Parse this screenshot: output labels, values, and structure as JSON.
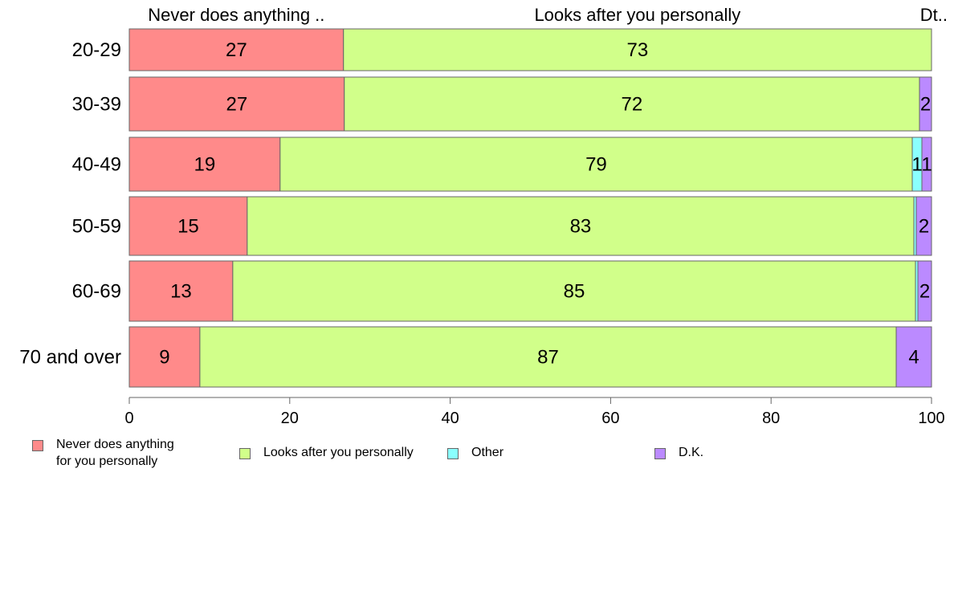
{
  "chart_data": {
    "type": "bar",
    "orientation": "horizontal",
    "stacked": true,
    "categories": [
      "20-29",
      "30-39",
      "40-49",
      "50-59",
      "60-69",
      "70 and over"
    ],
    "series": [
      {
        "name": "Never does anything for you personally",
        "color": "#ff8a8a",
        "values": [
          26.7,
          26.8,
          18.8,
          14.7,
          12.9,
          8.8
        ],
        "labels": [
          "27",
          "27",
          "19",
          "15",
          "13",
          "9"
        ]
      },
      {
        "name": "Looks after you personally",
        "color": "#d1ff8a",
        "values": [
          73.3,
          71.7,
          78.8,
          83.1,
          85.1,
          86.8
        ],
        "labels": [
          "73",
          "72",
          "79",
          "83",
          "85",
          "87"
        ]
      },
      {
        "name": "Other",
        "color": "#8afffe",
        "values": [
          0,
          0,
          1.2,
          0.3,
          0.3,
          0
        ],
        "labels": [
          "",
          "",
          "1",
          "",
          "",
          ""
        ]
      },
      {
        "name": "D.K.",
        "color": "#bb8aff",
        "values": [
          0,
          1.5,
          1.2,
          1.9,
          1.7,
          4.4
        ],
        "labels": [
          "",
          "2",
          "1",
          "2",
          "2",
          "4"
        ]
      }
    ],
    "top_labels": [
      "Never does anything ..",
      "Looks after you personally",
      "Dt.."
    ],
    "xlim": [
      0,
      100
    ],
    "x_ticks": [
      "0",
      "20",
      "40",
      "60",
      "80",
      "100"
    ],
    "grid": false,
    "legend_position": "bottom"
  },
  "legend": {
    "items": [
      {
        "lines": [
          "Never does anything",
          "for you personally"
        ],
        "color": "#ff8a8a"
      },
      {
        "lines": [
          "Looks after you personally"
        ],
        "color": "#d1ff8a"
      },
      {
        "lines": [
          "Other"
        ],
        "color": "#8afffe"
      },
      {
        "lines": [
          "D.K."
        ],
        "color": "#bb8aff"
      }
    ]
  }
}
